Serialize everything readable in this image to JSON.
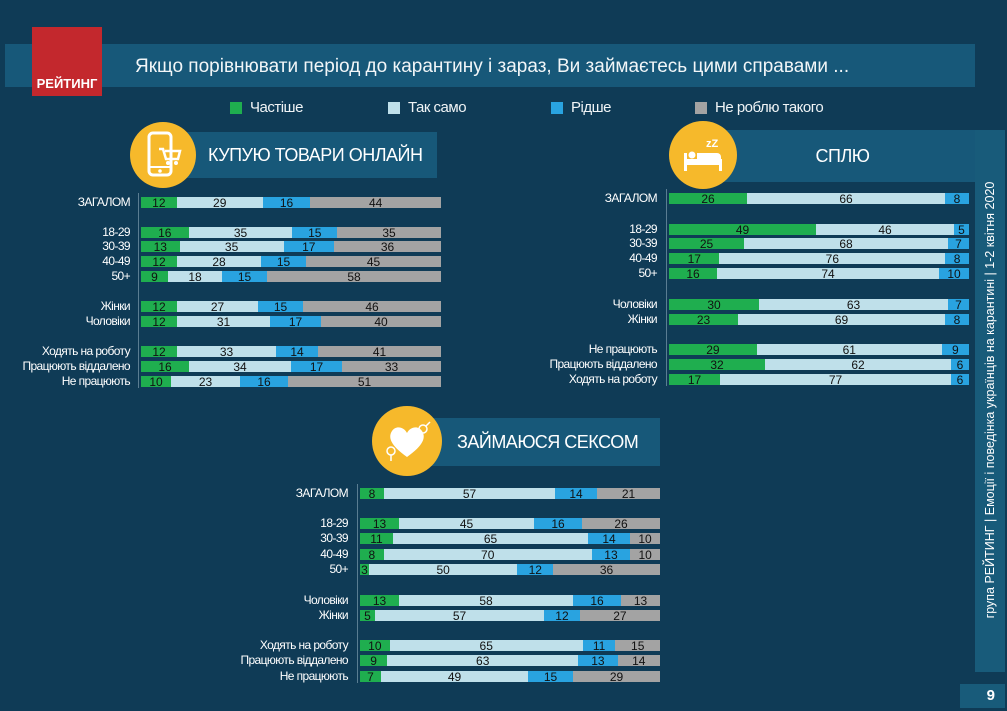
{
  "header": {
    "title": "Якщо порівнювати  період до карантину і зараз, Ви займаєтесь цими справами ...",
    "logo_text": "РЕЙТИНГ"
  },
  "sidebar": {
    "text": "група РЕЙТИНГ  |  Емоції і поведінка українців на карантині  |  1-2 квітня 2020",
    "page_number": "9"
  },
  "legend": [
    {
      "label": "Частіше",
      "color": "#1fae4f"
    },
    {
      "label": "Так само",
      "color": "#bfe0ea"
    },
    {
      "label": "Рідше",
      "color": "#29a3e0"
    },
    {
      "label": "Не роблю такого",
      "color": "#a3a3a3"
    }
  ],
  "chart_data": [
    {
      "type": "bar",
      "orientation": "horizontal",
      "stacked": true,
      "title": "КУПУЮ ТОВАРИ ОНЛАЙН",
      "icon": "phone-cart-icon",
      "categories": [
        "ЗАГАЛОМ",
        "18-29",
        "30-39",
        "40-49",
        "50+",
        "Жінки",
        "Чоловіки",
        "Ходять на роботу",
        "Працюють віддалено",
        "Не працюють"
      ],
      "series": [
        {
          "name": "Частіше",
          "values": [
            12,
            16,
            13,
            12,
            9,
            12,
            12,
            12,
            16,
            10
          ]
        },
        {
          "name": "Так само",
          "values": [
            29,
            35,
            35,
            28,
            18,
            27,
            31,
            33,
            34,
            23
          ]
        },
        {
          "name": "Рідше",
          "values": [
            16,
            15,
            17,
            15,
            15,
            15,
            17,
            14,
            17,
            16
          ]
        },
        {
          "name": "Не роблю такого",
          "values": [
            44,
            35,
            36,
            45,
            58,
            46,
            40,
            41,
            33,
            51
          ]
        }
      ]
    },
    {
      "type": "bar",
      "orientation": "horizontal",
      "stacked": true,
      "title": "СПЛЮ",
      "icon": "sleeping-bed-icon",
      "categories": [
        "ЗАГАЛОМ",
        "18-29",
        "30-39",
        "40-49",
        "50+",
        "Чоловіки",
        "Жінки",
        "Не працюють",
        "Працюють віддалено",
        "Ходять на роботу"
      ],
      "series": [
        {
          "name": "Частіше",
          "values": [
            26,
            49,
            25,
            17,
            16,
            30,
            23,
            29,
            32,
            17
          ]
        },
        {
          "name": "Так само",
          "values": [
            66,
            46,
            68,
            76,
            74,
            63,
            69,
            61,
            62,
            77
          ]
        },
        {
          "name": "Рідше",
          "values": [
            8,
            5,
            7,
            8,
            10,
            7,
            8,
            9,
            6,
            6
          ]
        }
      ]
    },
    {
      "type": "bar",
      "orientation": "horizontal",
      "stacked": true,
      "title": "ЗАЙМАЮСЯ СЕКСОМ",
      "icon": "hearts-icon",
      "categories": [
        "ЗАГАЛОМ",
        "18-29",
        "30-39",
        "40-49",
        "50+",
        "Чоловіки",
        "Жінки",
        "Ходять на роботу",
        "Працюють віддалено",
        "Не працюють"
      ],
      "series": [
        {
          "name": "Частіше",
          "values": [
            8,
            13,
            11,
            8,
            3,
            13,
            5,
            10,
            9,
            7
          ]
        },
        {
          "name": "Так само",
          "values": [
            57,
            45,
            65,
            70,
            50,
            58,
            57,
            65,
            63,
            49
          ]
        },
        {
          "name": "Рідше",
          "values": [
            14,
            16,
            14,
            13,
            12,
            16,
            12,
            11,
            13,
            15
          ]
        },
        {
          "name": "Не роблю такого",
          "values": [
            21,
            26,
            10,
            10,
            36,
            13,
            27,
            15,
            14,
            29
          ]
        }
      ]
    }
  ]
}
